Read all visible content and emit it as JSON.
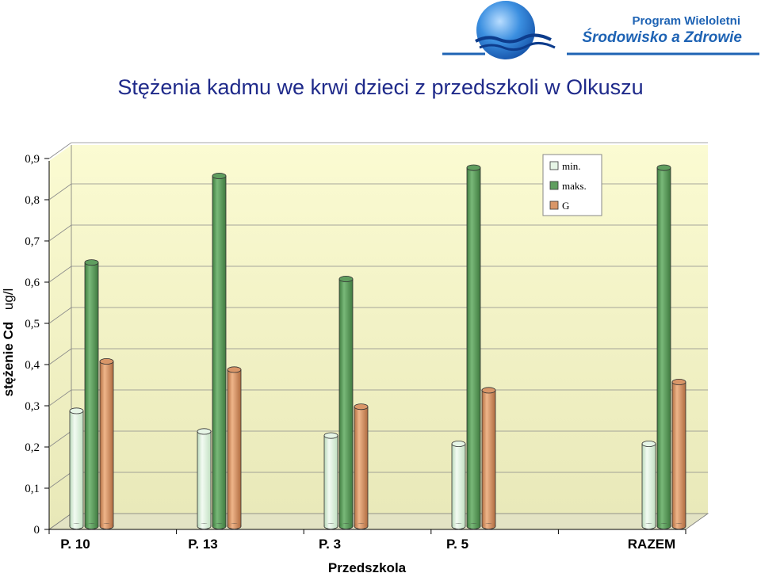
{
  "header": {
    "program_line1": "Program Wieloletni",
    "program_line2": "Środowisko a Zdrowie",
    "logo_icon": "globe-waves-logo-icon"
  },
  "page_title": "Stężenia kadmu we krwi dzieci z przedszkoli w Olkuszu",
  "chart_data": {
    "type": "bar",
    "style": "3d-cylinder",
    "title": "Stężenia kadmu we krwi dzieci z przedszkoli w Olkuszu",
    "xlabel": "Przedszkola",
    "ylabel_bold": "stężenie Cd",
    "ylabel_unit": "ug/l",
    "categories": [
      "P. 10",
      "P. 13",
      "P. 3",
      "P. 5",
      "RAZEM"
    ],
    "ylim": [
      0,
      0.9
    ],
    "yticks": [
      "0",
      "0,1",
      "0,2",
      "0,3",
      "0,4",
      "0,5",
      "0,6",
      "0,7",
      "0,8",
      "0,9"
    ],
    "grid": true,
    "legend_position": "top-right",
    "series": [
      {
        "name": "min.",
        "color": "#e6f5e6",
        "values": [
          0.28,
          0.23,
          0.22,
          0.2,
          0.2
        ]
      },
      {
        "name": "maks.",
        "color": "#5f9e5f",
        "values": [
          0.64,
          0.85,
          0.6,
          0.87,
          0.87
        ]
      },
      {
        "name": "G",
        "color": "#d99668",
        "values": [
          0.4,
          0.38,
          0.29,
          0.33,
          0.35
        ]
      }
    ]
  }
}
